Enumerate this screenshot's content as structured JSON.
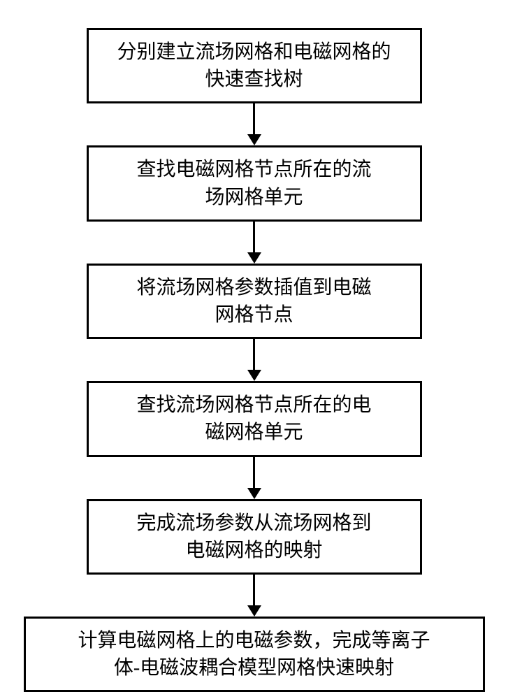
{
  "flowchart": {
    "type": "flowchart",
    "background_color": "#ffffff",
    "border_color": "#000000",
    "border_width": 3,
    "font_family": "SimSun",
    "font_size": 28,
    "text_color": "#000000",
    "arrow_color": "#000000",
    "arrow_line_width": 3,
    "arrow_head_width": 20,
    "arrow_head_height": 16,
    "arrow_gap_height": 60,
    "node_regular_width": 480,
    "node_wide_width": 660,
    "nodes": [
      {
        "id": "n1",
        "line1": "分别建立流场网格和电磁网格的",
        "line2": "快速查找树",
        "width": "regular"
      },
      {
        "id": "n2",
        "line1": "查找电磁网格节点所在的流",
        "line2": "场网格单元",
        "width": "regular"
      },
      {
        "id": "n3",
        "line1": "将流场网格参数插值到电磁",
        "line2": "网格节点",
        "width": "regular"
      },
      {
        "id": "n4",
        "line1": "查找流场网格节点所在的电",
        "line2": "磁网格单元",
        "width": "regular"
      },
      {
        "id": "n5",
        "line1": "完成流场参数从流场网格到",
        "line2": "电磁网格的映射",
        "width": "regular"
      },
      {
        "id": "n6",
        "line1": "计算电磁网格上的电磁参数，完成等离子",
        "line2": "体-电磁波耦合模型网格快速映射",
        "width": "wide"
      }
    ],
    "edges": [
      {
        "from": "n1",
        "to": "n2"
      },
      {
        "from": "n2",
        "to": "n3"
      },
      {
        "from": "n3",
        "to": "n4"
      },
      {
        "from": "n4",
        "to": "n5"
      },
      {
        "from": "n5",
        "to": "n6"
      }
    ]
  }
}
